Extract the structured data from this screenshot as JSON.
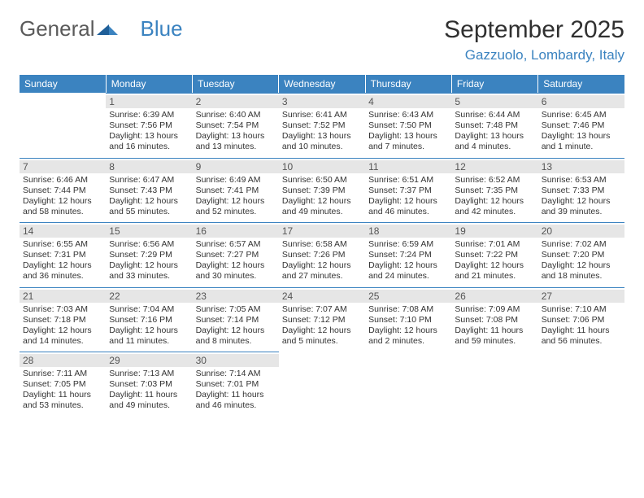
{
  "brand": {
    "part1": "General",
    "part2": "Blue"
  },
  "title": "September 2025",
  "location": "Gazzuolo, Lombardy, Italy",
  "colors": {
    "accent": "#3b83c0",
    "header_text": "#ffffff",
    "daynum_bg": "#e6e6e6",
    "body_text": "#333333",
    "logo_gray": "#5a5a5a"
  },
  "weekdays": [
    "Sunday",
    "Monday",
    "Tuesday",
    "Wednesday",
    "Thursday",
    "Friday",
    "Saturday"
  ],
  "weeks": [
    [
      null,
      {
        "n": "1",
        "sr": "Sunrise: 6:39 AM",
        "ss": "Sunset: 7:56 PM",
        "dl1": "Daylight: 13 hours",
        "dl2": "and 16 minutes."
      },
      {
        "n": "2",
        "sr": "Sunrise: 6:40 AM",
        "ss": "Sunset: 7:54 PM",
        "dl1": "Daylight: 13 hours",
        "dl2": "and 13 minutes."
      },
      {
        "n": "3",
        "sr": "Sunrise: 6:41 AM",
        "ss": "Sunset: 7:52 PM",
        "dl1": "Daylight: 13 hours",
        "dl2": "and 10 minutes."
      },
      {
        "n": "4",
        "sr": "Sunrise: 6:43 AM",
        "ss": "Sunset: 7:50 PM",
        "dl1": "Daylight: 13 hours",
        "dl2": "and 7 minutes."
      },
      {
        "n": "5",
        "sr": "Sunrise: 6:44 AM",
        "ss": "Sunset: 7:48 PM",
        "dl1": "Daylight: 13 hours",
        "dl2": "and 4 minutes."
      },
      {
        "n": "6",
        "sr": "Sunrise: 6:45 AM",
        "ss": "Sunset: 7:46 PM",
        "dl1": "Daylight: 13 hours",
        "dl2": "and 1 minute."
      }
    ],
    [
      {
        "n": "7",
        "sr": "Sunrise: 6:46 AM",
        "ss": "Sunset: 7:44 PM",
        "dl1": "Daylight: 12 hours",
        "dl2": "and 58 minutes."
      },
      {
        "n": "8",
        "sr": "Sunrise: 6:47 AM",
        "ss": "Sunset: 7:43 PM",
        "dl1": "Daylight: 12 hours",
        "dl2": "and 55 minutes."
      },
      {
        "n": "9",
        "sr": "Sunrise: 6:49 AM",
        "ss": "Sunset: 7:41 PM",
        "dl1": "Daylight: 12 hours",
        "dl2": "and 52 minutes."
      },
      {
        "n": "10",
        "sr": "Sunrise: 6:50 AM",
        "ss": "Sunset: 7:39 PM",
        "dl1": "Daylight: 12 hours",
        "dl2": "and 49 minutes."
      },
      {
        "n": "11",
        "sr": "Sunrise: 6:51 AM",
        "ss": "Sunset: 7:37 PM",
        "dl1": "Daylight: 12 hours",
        "dl2": "and 46 minutes."
      },
      {
        "n": "12",
        "sr": "Sunrise: 6:52 AM",
        "ss": "Sunset: 7:35 PM",
        "dl1": "Daylight: 12 hours",
        "dl2": "and 42 minutes."
      },
      {
        "n": "13",
        "sr": "Sunrise: 6:53 AM",
        "ss": "Sunset: 7:33 PM",
        "dl1": "Daylight: 12 hours",
        "dl2": "and 39 minutes."
      }
    ],
    [
      {
        "n": "14",
        "sr": "Sunrise: 6:55 AM",
        "ss": "Sunset: 7:31 PM",
        "dl1": "Daylight: 12 hours",
        "dl2": "and 36 minutes."
      },
      {
        "n": "15",
        "sr": "Sunrise: 6:56 AM",
        "ss": "Sunset: 7:29 PM",
        "dl1": "Daylight: 12 hours",
        "dl2": "and 33 minutes."
      },
      {
        "n": "16",
        "sr": "Sunrise: 6:57 AM",
        "ss": "Sunset: 7:27 PM",
        "dl1": "Daylight: 12 hours",
        "dl2": "and 30 minutes."
      },
      {
        "n": "17",
        "sr": "Sunrise: 6:58 AM",
        "ss": "Sunset: 7:26 PM",
        "dl1": "Daylight: 12 hours",
        "dl2": "and 27 minutes."
      },
      {
        "n": "18",
        "sr": "Sunrise: 6:59 AM",
        "ss": "Sunset: 7:24 PM",
        "dl1": "Daylight: 12 hours",
        "dl2": "and 24 minutes."
      },
      {
        "n": "19",
        "sr": "Sunrise: 7:01 AM",
        "ss": "Sunset: 7:22 PM",
        "dl1": "Daylight: 12 hours",
        "dl2": "and 21 minutes."
      },
      {
        "n": "20",
        "sr": "Sunrise: 7:02 AM",
        "ss": "Sunset: 7:20 PM",
        "dl1": "Daylight: 12 hours",
        "dl2": "and 18 minutes."
      }
    ],
    [
      {
        "n": "21",
        "sr": "Sunrise: 7:03 AM",
        "ss": "Sunset: 7:18 PM",
        "dl1": "Daylight: 12 hours",
        "dl2": "and 14 minutes."
      },
      {
        "n": "22",
        "sr": "Sunrise: 7:04 AM",
        "ss": "Sunset: 7:16 PM",
        "dl1": "Daylight: 12 hours",
        "dl2": "and 11 minutes."
      },
      {
        "n": "23",
        "sr": "Sunrise: 7:05 AM",
        "ss": "Sunset: 7:14 PM",
        "dl1": "Daylight: 12 hours",
        "dl2": "and 8 minutes."
      },
      {
        "n": "24",
        "sr": "Sunrise: 7:07 AM",
        "ss": "Sunset: 7:12 PM",
        "dl1": "Daylight: 12 hours",
        "dl2": "and 5 minutes."
      },
      {
        "n": "25",
        "sr": "Sunrise: 7:08 AM",
        "ss": "Sunset: 7:10 PM",
        "dl1": "Daylight: 12 hours",
        "dl2": "and 2 minutes."
      },
      {
        "n": "26",
        "sr": "Sunrise: 7:09 AM",
        "ss": "Sunset: 7:08 PM",
        "dl1": "Daylight: 11 hours",
        "dl2": "and 59 minutes."
      },
      {
        "n": "27",
        "sr": "Sunrise: 7:10 AM",
        "ss": "Sunset: 7:06 PM",
        "dl1": "Daylight: 11 hours",
        "dl2": "and 56 minutes."
      }
    ],
    [
      {
        "n": "28",
        "sr": "Sunrise: 7:11 AM",
        "ss": "Sunset: 7:05 PM",
        "dl1": "Daylight: 11 hours",
        "dl2": "and 53 minutes."
      },
      {
        "n": "29",
        "sr": "Sunrise: 7:13 AM",
        "ss": "Sunset: 7:03 PM",
        "dl1": "Daylight: 11 hours",
        "dl2": "and 49 minutes."
      },
      {
        "n": "30",
        "sr": "Sunrise: 7:14 AM",
        "ss": "Sunset: 7:01 PM",
        "dl1": "Daylight: 11 hours",
        "dl2": "and 46 minutes."
      },
      null,
      null,
      null,
      null
    ]
  ]
}
